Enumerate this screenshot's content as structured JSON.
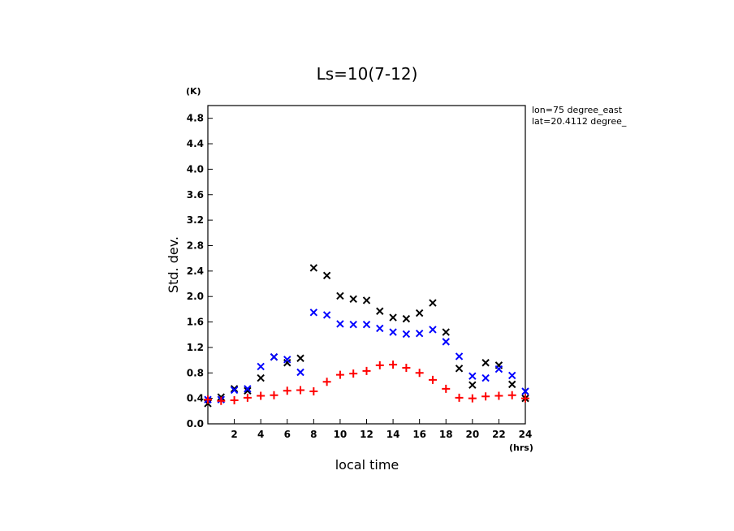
{
  "chart_data": {
    "type": "scatter",
    "title": "Ls=10(7-12)",
    "xlabel": "local time",
    "ylabel": "Std. dev.",
    "x_unit": "(hrs)",
    "y_unit": "(K)",
    "annotations": [
      "lon=75 degree_east",
      "lat=20.4112 degree_"
    ],
    "xlim": [
      0,
      24
    ],
    "ylim": [
      0,
      5.0
    ],
    "xticks": [
      2,
      4,
      6,
      8,
      10,
      12,
      14,
      16,
      18,
      20,
      22,
      24
    ],
    "yticks": [
      "0.0",
      "0.4",
      "0.8",
      "1.2",
      "1.6",
      "2.0",
      "2.4",
      "2.8",
      "3.2",
      "3.6",
      "4.0",
      "4.4",
      "4.8"
    ],
    "grid": false,
    "series": [
      {
        "marker": "x",
        "color": "#000000",
        "x": [
          0,
          1,
          2,
          3,
          4,
          5,
          6,
          7,
          8,
          9,
          10,
          11,
          12,
          13,
          14,
          15,
          16,
          17,
          18,
          19,
          20,
          21,
          22,
          23,
          24
        ],
        "values": [
          0.32,
          0.42,
          0.55,
          0.52,
          0.72,
          1.05,
          0.96,
          1.03,
          2.45,
          2.33,
          2.01,
          1.96,
          1.94,
          1.77,
          1.67,
          1.65,
          1.74,
          1.9,
          1.44,
          0.87,
          0.61,
          0.96,
          0.92,
          0.62,
          0.4
        ]
      },
      {
        "marker": "x",
        "color": "#0000ff",
        "x": [
          0,
          1,
          2,
          3,
          4,
          5,
          6,
          7,
          8,
          9,
          10,
          11,
          12,
          13,
          14,
          15,
          16,
          17,
          18,
          19,
          20,
          21,
          22,
          23,
          24
        ],
        "values": [
          0.38,
          0.38,
          0.53,
          0.55,
          0.9,
          1.05,
          1.01,
          0.81,
          1.75,
          1.71,
          1.57,
          1.56,
          1.56,
          1.5,
          1.44,
          1.41,
          1.42,
          1.48,
          1.29,
          1.06,
          0.75,
          0.72,
          0.86,
          0.76,
          0.51
        ]
      },
      {
        "marker": "+",
        "color": "#ff0000",
        "x": [
          0,
          1,
          2,
          3,
          4,
          5,
          6,
          7,
          8,
          9,
          10,
          11,
          12,
          13,
          14,
          15,
          16,
          17,
          18,
          19,
          20,
          21,
          22,
          23,
          24
        ],
        "values": [
          0.38,
          0.36,
          0.37,
          0.41,
          0.44,
          0.45,
          0.52,
          0.53,
          0.51,
          0.66,
          0.77,
          0.79,
          0.83,
          0.92,
          0.93,
          0.88,
          0.8,
          0.69,
          0.55,
          0.41,
          0.4,
          0.43,
          0.44,
          0.45,
          0.4
        ]
      }
    ]
  }
}
